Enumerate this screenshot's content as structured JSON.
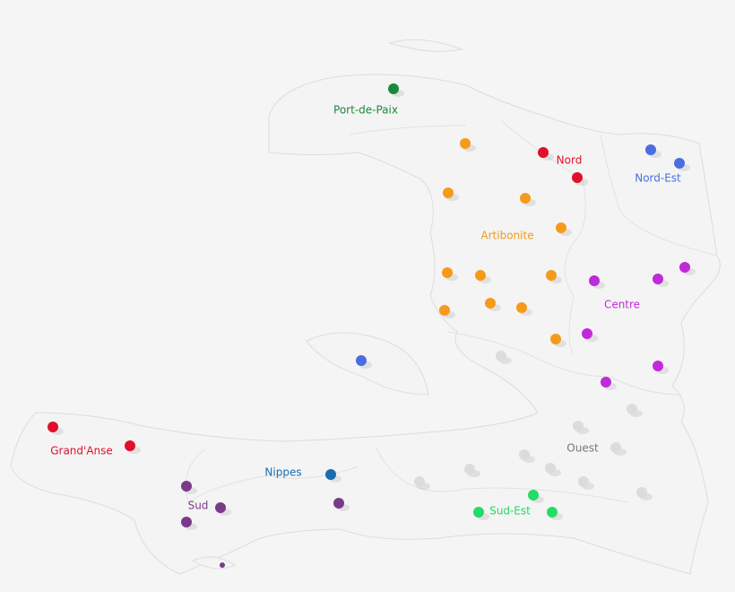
{
  "map": {
    "regions": [
      {
        "label": "Port-de-Paix",
        "color": "#1a8a3a"
      },
      {
        "label": "Nord",
        "color": "#e0102a"
      },
      {
        "label": "Nord-Est",
        "color": "#4a6ee0"
      },
      {
        "label": "Artibonite",
        "color": "#f59a1a"
      },
      {
        "label": "Centre",
        "color": "#c02ad8"
      },
      {
        "label": "Ouest",
        "color": "#dcdcdc"
      },
      {
        "label": "Sud-Est",
        "color": "#22dd66"
      },
      {
        "label": "Nippes",
        "color": "#1a6cb0"
      },
      {
        "label": "Grand'Anse",
        "color": "#e0102a"
      },
      {
        "label": "Sud",
        "color": "#7a3a8a"
      }
    ]
  }
}
